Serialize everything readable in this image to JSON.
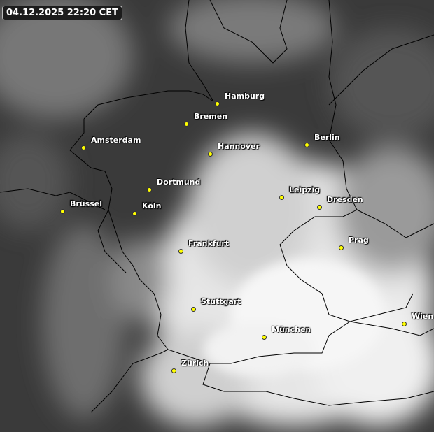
{
  "timestamp": "04.12.2025 22:20 CET",
  "colors": {
    "city_marker": "#ffff00",
    "label": "#ffffff",
    "border": "#000000"
  },
  "cities": [
    {
      "name": "Hamburg"
    },
    {
      "name": "Bremen"
    },
    {
      "name": "Amsterdam"
    },
    {
      "name": "Hannover"
    },
    {
      "name": "Berlin"
    },
    {
      "name": "Dortmund"
    },
    {
      "name": "Leipzig"
    },
    {
      "name": "Dresden"
    },
    {
      "name": "Brüssel"
    },
    {
      "name": "Köln"
    },
    {
      "name": "Prag"
    },
    {
      "name": "Frankfurt"
    },
    {
      "name": "Stuttgart"
    },
    {
      "name": "München"
    },
    {
      "name": "Wien"
    },
    {
      "name": "Zürich"
    }
  ]
}
